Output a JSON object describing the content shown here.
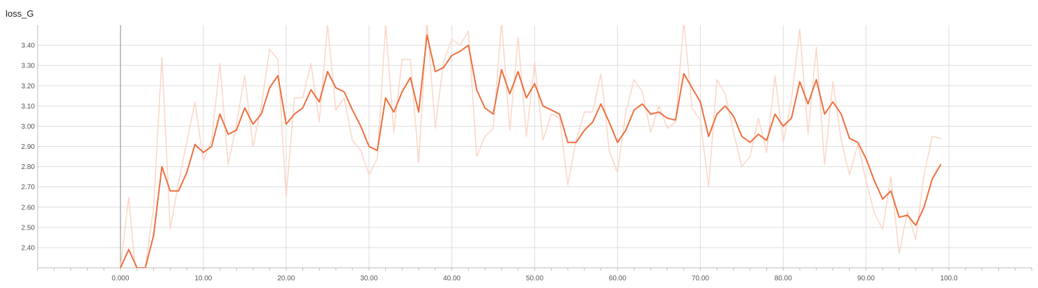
{
  "chart_data": {
    "type": "line",
    "title": "loss_G",
    "xlabel": "",
    "ylabel": "",
    "xlim": [
      -10,
      110
    ],
    "ylim": [
      2.3,
      3.5
    ],
    "grid": true,
    "x_ticks": [
      0,
      10,
      20,
      30,
      40,
      50,
      60,
      70,
      80,
      90,
      100
    ],
    "x_tick_labels": [
      "0.000",
      "10.00",
      "20.00",
      "30.00",
      "40.00",
      "50.00",
      "60.00",
      "70.00",
      "80.00",
      "90.00",
      "100.0"
    ],
    "y_ticks": [
      2.4,
      2.5,
      2.6,
      2.7,
      2.8,
      2.9,
      3.0,
      3.1,
      3.2,
      3.3,
      3.4
    ],
    "y_tick_labels": [
      "2.40",
      "2.50",
      "2.60",
      "2.70",
      "2.80",
      "2.90",
      "3.00",
      "3.10",
      "3.20",
      "3.30",
      "3.40"
    ],
    "colors": {
      "smoothed": "#ef6e3c",
      "raw": "#fcd7c9",
      "grid": "#dddddd",
      "zero_line": "#999999",
      "axis": "#bbbbbb"
    },
    "series": [
      {
        "role": "raw",
        "x": [
          0,
          1,
          2,
          3,
          4,
          5,
          6,
          7,
          8,
          9,
          10,
          11,
          12,
          13,
          14,
          15,
          16,
          17,
          18,
          19,
          20,
          21,
          22,
          23,
          24,
          25,
          26,
          27,
          28,
          29,
          30,
          31,
          32,
          33,
          34,
          35,
          36,
          37,
          38,
          39,
          40,
          41,
          42,
          43,
          44,
          45,
          46,
          47,
          48,
          49,
          50,
          51,
          52,
          53,
          54,
          55,
          56,
          57,
          58,
          59,
          60,
          61,
          62,
          63,
          64,
          65,
          66,
          67,
          68,
          69,
          70,
          71,
          72,
          73,
          74,
          75,
          76,
          77,
          78,
          79,
          80,
          81,
          82,
          83,
          84,
          85,
          86,
          87,
          88,
          89,
          90,
          91,
          92,
          93,
          94,
          95,
          96,
          97,
          98,
          99
        ],
        "y": [
          2.3,
          2.65,
          2.2,
          2.3,
          2.6,
          3.34,
          2.49,
          2.72,
          2.92,
          3.12,
          2.83,
          2.93,
          3.31,
          2.81,
          3.01,
          3.25,
          2.9,
          3.1,
          3.38,
          3.33,
          2.65,
          3.14,
          3.14,
          3.31,
          3.02,
          3.5,
          3.08,
          3.14,
          2.93,
          2.88,
          2.76,
          2.84,
          3.5,
          2.97,
          3.33,
          3.33,
          2.82,
          3.52,
          2.99,
          3.32,
          3.43,
          3.4,
          3.47,
          2.85,
          2.95,
          2.99,
          3.52,
          2.98,
          3.44,
          2.95,
          3.32,
          2.93,
          3.06,
          3.04,
          2.71,
          2.93,
          3.07,
          3.07,
          3.26,
          2.88,
          2.77,
          3.07,
          3.23,
          3.17,
          2.97,
          3.1,
          2.99,
          3.02,
          3.52,
          3.09,
          3.03,
          2.7,
          3.23,
          3.16,
          2.97,
          2.8,
          2.85,
          3.04,
          2.87,
          3.25,
          2.92,
          3.13,
          3.48,
          2.96,
          3.39,
          2.81,
          3.22,
          2.93,
          2.76,
          2.91,
          2.73,
          2.57,
          2.49,
          2.75,
          2.37,
          2.58,
          2.44,
          2.76,
          2.95,
          2.94
        ]
      },
      {
        "role": "smoothed",
        "x": [
          0,
          1,
          2,
          3,
          4,
          5,
          6,
          7,
          8,
          9,
          10,
          11,
          12,
          13,
          14,
          15,
          16,
          17,
          18,
          19,
          20,
          21,
          22,
          23,
          24,
          25,
          26,
          27,
          28,
          29,
          30,
          31,
          32,
          33,
          34,
          35,
          36,
          37,
          38,
          39,
          40,
          41,
          42,
          43,
          44,
          45,
          46,
          47,
          48,
          49,
          50,
          51,
          52,
          53,
          54,
          55,
          56,
          57,
          58,
          59,
          60,
          61,
          62,
          63,
          64,
          65,
          66,
          67,
          68,
          69,
          70,
          71,
          72,
          73,
          74,
          75,
          76,
          77,
          78,
          79,
          80,
          81,
          82,
          83,
          84,
          85,
          86,
          87,
          88,
          89,
          90,
          91,
          92,
          93,
          94,
          95,
          96,
          97,
          98,
          99
        ],
        "y": [
          2.3,
          2.39,
          2.3,
          2.3,
          2.46,
          2.8,
          2.68,
          2.68,
          2.77,
          2.91,
          2.87,
          2.9,
          3.06,
          2.96,
          2.98,
          3.09,
          3.01,
          3.06,
          3.19,
          3.25,
          3.01,
          3.06,
          3.09,
          3.18,
          3.12,
          3.27,
          3.19,
          3.17,
          3.08,
          3.0,
          2.9,
          2.88,
          3.14,
          3.07,
          3.17,
          3.24,
          3.07,
          3.45,
          3.27,
          3.29,
          3.35,
          3.37,
          3.4,
          3.18,
          3.09,
          3.06,
          3.28,
          3.16,
          3.27,
          3.14,
          3.21,
          3.1,
          3.08,
          3.06,
          2.92,
          2.92,
          2.98,
          3.02,
          3.11,
          3.02,
          2.92,
          2.98,
          3.08,
          3.11,
          3.06,
          3.07,
          3.04,
          3.03,
          3.26,
          3.19,
          3.12,
          2.95,
          3.06,
          3.1,
          3.05,
          2.95,
          2.92,
          2.96,
          2.93,
          3.06,
          3.0,
          3.04,
          3.22,
          3.11,
          3.23,
          3.06,
          3.12,
          3.06,
          2.94,
          2.92,
          2.84,
          2.73,
          2.64,
          2.68,
          2.55,
          2.56,
          2.51,
          2.6,
          2.74,
          2.81
        ]
      }
    ]
  }
}
